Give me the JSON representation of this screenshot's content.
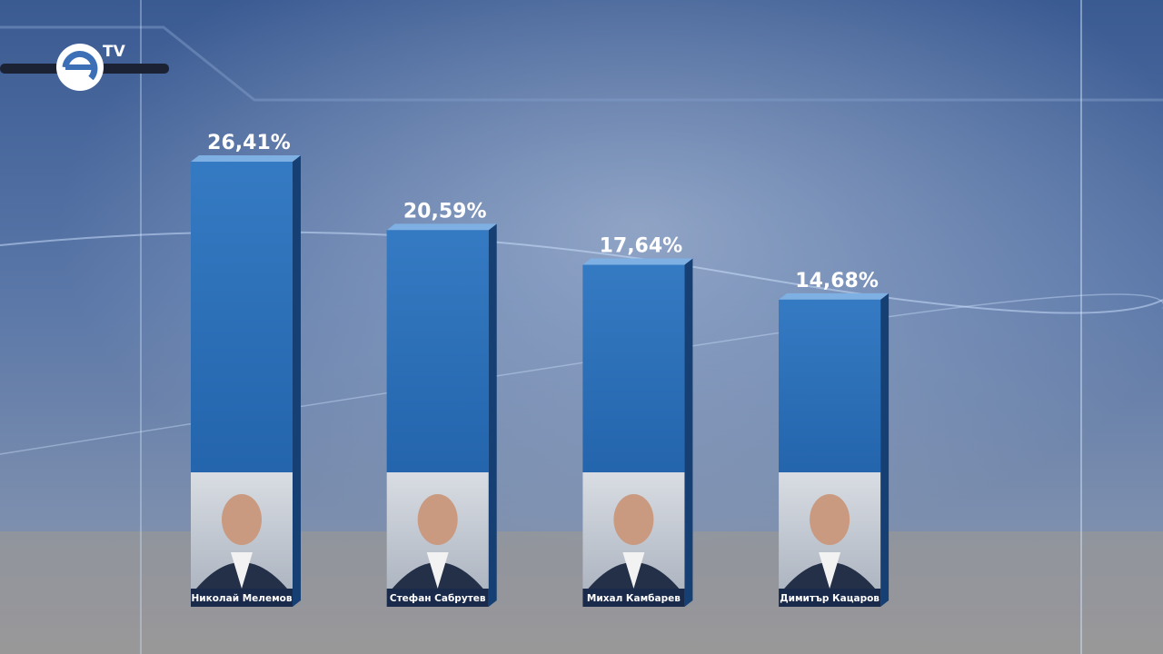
{
  "logo_text": "TV",
  "chart_data": {
    "type": "bar",
    "categories": [
      "Николай Мелемов",
      "Стефан Сабрутев",
      "Михал Камбарев",
      "Димитър Кацаров"
    ],
    "values": [
      26.41,
      20.59,
      17.64,
      14.68
    ],
    "value_labels": [
      "26,41%",
      "20,59%",
      "17,64%",
      "14,68%"
    ],
    "color": "#2b6fb8"
  }
}
